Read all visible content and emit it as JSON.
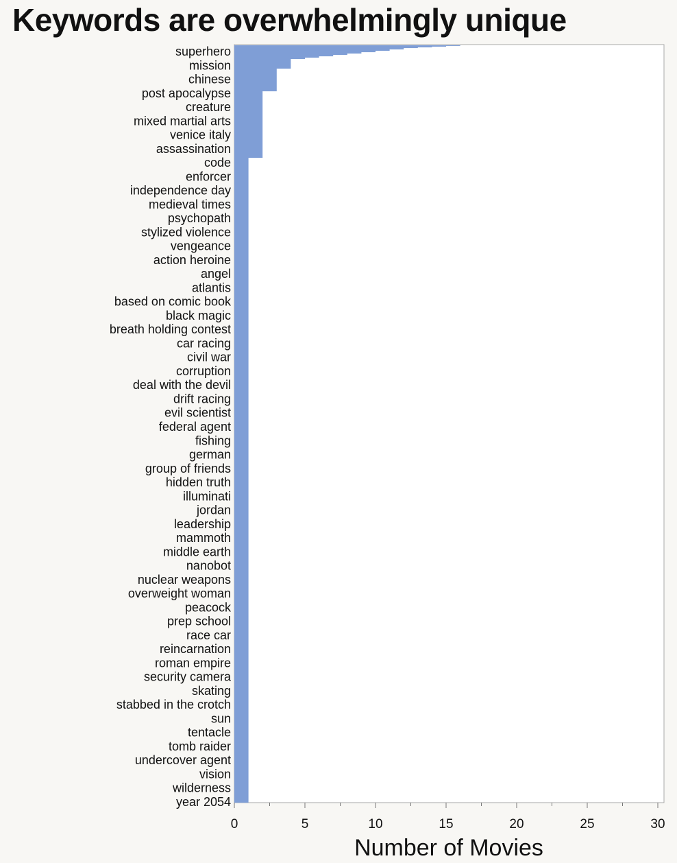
{
  "chart_data": {
    "type": "bar",
    "orientation": "horizontal",
    "title": "Keywords are overwhelmingly unique",
    "xlabel": "Number of Movies",
    "ylabel": "",
    "xlim": [
      0,
      30
    ],
    "xticks": [
      0,
      5,
      10,
      15,
      20,
      25,
      30
    ],
    "bar_color": "#7f9ed6",
    "plot_background": "#ffffff",
    "page_background": "#f8f7f4",
    "labeled_keywords": [
      {
        "label": "superhero",
        "value": 16
      },
      {
        "label": "mission",
        "value": 8
      },
      {
        "label": "chinese",
        "value": 4
      },
      {
        "label": "post apocalypse",
        "value": 4
      },
      {
        "label": "creature",
        "value": 3
      },
      {
        "label": "mixed martial arts",
        "value": 3
      },
      {
        "label": "venice italy",
        "value": 3
      },
      {
        "label": "assassination",
        "value": 2
      },
      {
        "label": "code",
        "value": 2
      },
      {
        "label": "enforcer",
        "value": 2
      },
      {
        "label": "independence day",
        "value": 2
      },
      {
        "label": "medieval times",
        "value": 2
      },
      {
        "label": "psychopath",
        "value": 2
      },
      {
        "label": "stylized violence",
        "value": 2
      },
      {
        "label": "vengeance",
        "value": 2
      },
      {
        "label": "action heroine",
        "value": 1
      },
      {
        "label": "angel",
        "value": 1
      },
      {
        "label": "atlantis",
        "value": 1
      },
      {
        "label": "based on comic book",
        "value": 1
      },
      {
        "label": "black magic",
        "value": 1
      },
      {
        "label": "breath holding contest",
        "value": 1
      },
      {
        "label": "car racing",
        "value": 1
      },
      {
        "label": "civil war",
        "value": 1
      },
      {
        "label": "corruption",
        "value": 1
      },
      {
        "label": "deal with the devil",
        "value": 1
      },
      {
        "label": "drift racing",
        "value": 1
      },
      {
        "label": "evil scientist",
        "value": 1
      },
      {
        "label": "federal agent",
        "value": 1
      },
      {
        "label": "fishing",
        "value": 1
      },
      {
        "label": "german",
        "value": 1
      },
      {
        "label": "group of friends",
        "value": 1
      },
      {
        "label": "hidden truth",
        "value": 1
      },
      {
        "label": "illuminati",
        "value": 1
      },
      {
        "label": "jordan",
        "value": 1
      },
      {
        "label": "leadership",
        "value": 1
      },
      {
        "label": "mammoth",
        "value": 1
      },
      {
        "label": "middle earth",
        "value": 1
      },
      {
        "label": "nanobot",
        "value": 1
      },
      {
        "label": "nuclear weapons",
        "value": 1
      },
      {
        "label": "overweight woman",
        "value": 1
      },
      {
        "label": "peacock",
        "value": 1
      },
      {
        "label": "prep school",
        "value": 1
      },
      {
        "label": "race car",
        "value": 1
      },
      {
        "label": "reincarnation",
        "value": 1
      },
      {
        "label": "roman empire",
        "value": 1
      },
      {
        "label": "security camera",
        "value": 1
      },
      {
        "label": "skating",
        "value": 1
      },
      {
        "label": "stabbed in the crotch",
        "value": 1
      },
      {
        "label": "sun",
        "value": 1
      },
      {
        "label": "tentacle",
        "value": 1
      },
      {
        "label": "tomb raider",
        "value": 1
      },
      {
        "label": "undercover agent",
        "value": 1
      },
      {
        "label": "vision",
        "value": 1
      },
      {
        "label": "wilderness",
        "value": 1
      },
      {
        "label": "year 2054",
        "value": 1
      }
    ],
    "sorted_values_by_rank": [
      16,
      15,
      14,
      13,
      12,
      12,
      11,
      11,
      10,
      10,
      9,
      9,
      8,
      8,
      7,
      7,
      6,
      6,
      5,
      5,
      4,
      4,
      4,
      4,
      4,
      4,
      4,
      4,
      4,
      4,
      4,
      4,
      4,
      4,
      3,
      3,
      3,
      3,
      3,
      3,
      3,
      3,
      3,
      3,
      3,
      3,
      3,
      3,
      3,
      3,
      3,
      3,
      3,
      3,
      3,
      3,
      3,
      3,
      3,
      3,
      3,
      3,
      3,
      3,
      3,
      3,
      3,
      2,
      2,
      2,
      2,
      2,
      2,
      2,
      2,
      2,
      2,
      2,
      2,
      2,
      2,
      2,
      2,
      2,
      2,
      2,
      2,
      2,
      2,
      2,
      2,
      2,
      2,
      2,
      2,
      2,
      2,
      2,
      2,
      2,
      2,
      2,
      2,
      2,
      2,
      2,
      2,
      2,
      2,
      2,
      2,
      2,
      2,
      2,
      2,
      2,
      2,
      2,
      2,
      2,
      2,
      2,
      2,
      2,
      2,
      2,
      2,
      2,
      2,
      2,
      2,
      2,
      2,
      2,
      2,
      2,
      2,
      2,
      2,
      2,
      2,
      2,
      2,
      2,
      2,
      2,
      2,
      2,
      2,
      2,
      2,
      2,
      2,
      2,
      2,
      2,
      2,
      2,
      2,
      2,
      2,
      2,
      2,
      2,
      1,
      1,
      1,
      1,
      1,
      1,
      1,
      1,
      1,
      1,
      1,
      1,
      1,
      1,
      1,
      1,
      1,
      1,
      1,
      1,
      1,
      1,
      1,
      1,
      1,
      1,
      1,
      1,
      1,
      1,
      1,
      1,
      1,
      1,
      1,
      1,
      1,
      1,
      1,
      1,
      1,
      1,
      1,
      1,
      1,
      1,
      1,
      1,
      1,
      1,
      1,
      1,
      1,
      1,
      1,
      1,
      1,
      1,
      1,
      1,
      1,
      1,
      1,
      1,
      1,
      1,
      1,
      1,
      1,
      1,
      1,
      1,
      1,
      1,
      1,
      1,
      1,
      1,
      1,
      1,
      1,
      1,
      1,
      1,
      1,
      1,
      1,
      1,
      1,
      1,
      1,
      1,
      1,
      1,
      1,
      1,
      1,
      1,
      1,
      1,
      1,
      1,
      1,
      1,
      1,
      1,
      1,
      1,
      1,
      1,
      1,
      1,
      1,
      1,
      1,
      1,
      1,
      1,
      1,
      1,
      1,
      1,
      1,
      1,
      1,
      1,
      1,
      1,
      1,
      1,
      1,
      1,
      1,
      1,
      1,
      1,
      1,
      1,
      1,
      1,
      1,
      1,
      1,
      1,
      1,
      1,
      1,
      1,
      1,
      1,
      1,
      1,
      1,
      1,
      1,
      1,
      1,
      1,
      1,
      1,
      1,
      1,
      1,
      1,
      1,
      1,
      1,
      1,
      1,
      1,
      1,
      1,
      1,
      1,
      1,
      1,
      1,
      1,
      1,
      1,
      1,
      1,
      1,
      1,
      1,
      1,
      1,
      1,
      1,
      1,
      1,
      1,
      1,
      1,
      1,
      1,
      1,
      1,
      1,
      1,
      1,
      1,
      1,
      1,
      1,
      1,
      1,
      1,
      1,
      1,
      1,
      1,
      1,
      1,
      1,
      1,
      1,
      1,
      1,
      1,
      1,
      1,
      1,
      1,
      1,
      1,
      1,
      1,
      1,
      1,
      1,
      1,
      1,
      1,
      1,
      1,
      1,
      1,
      1,
      1,
      1,
      1,
      1,
      1,
      1,
      1,
      1,
      1,
      1,
      1,
      1,
      1,
      1,
      1,
      1,
      1,
      1,
      1,
      1,
      1,
      1,
      1,
      1,
      1,
      1,
      1,
      1,
      1,
      1,
      1,
      1,
      1,
      1,
      1,
      1,
      1,
      1,
      1,
      1,
      1,
      1,
      1,
      1,
      1,
      1,
      1,
      1,
      1,
      1,
      1,
      1,
      1,
      1,
      1,
      1,
      1,
      1,
      1,
      1,
      1,
      1,
      1,
      1,
      1,
      1,
      1,
      1,
      1,
      1,
      1,
      1,
      1,
      1,
      1,
      1,
      1,
      1,
      1,
      1,
      1,
      1,
      1,
      1,
      1,
      1,
      1,
      1,
      1,
      1,
      1,
      1,
      1,
      1,
      1,
      1,
      1,
      1,
      1,
      1,
      1,
      1,
      1,
      1,
      1,
      1,
      1,
      1,
      1,
      1,
      1,
      1,
      1,
      1,
      1,
      1,
      1,
      1,
      1,
      1,
      1,
      1,
      1,
      1,
      1,
      1,
      1,
      1,
      1,
      1,
      1,
      1,
      1,
      1,
      1,
      1,
      1,
      1,
      1,
      1,
      1,
      1,
      1,
      1,
      1,
      1,
      1,
      1,
      1,
      1,
      1,
      1,
      1,
      1,
      1,
      1,
      1,
      1,
      1,
      1,
      1,
      1,
      1,
      1,
      1,
      1,
      1,
      1,
      1,
      1,
      1,
      1,
      1,
      1,
      1,
      1,
      1,
      1,
      1,
      1,
      1,
      1,
      1,
      1,
      1,
      1,
      1,
      1,
      1,
      1,
      1,
      1,
      1,
      1,
      1,
      1,
      1,
      1,
      1,
      1,
      1,
      1,
      1,
      1,
      1,
      1,
      1,
      1,
      1,
      1,
      1,
      1,
      1,
      1,
      1,
      1,
      1,
      1,
      1,
      1,
      1,
      1,
      1,
      1,
      1,
      1,
      1,
      1,
      1,
      1,
      1,
      1,
      1,
      1,
      1,
      1,
      1,
      1,
      1,
      1,
      1,
      1,
      1,
      1,
      1,
      1,
      1,
      1,
      1,
      1,
      1,
      1,
      1,
      1,
      1,
      1,
      1,
      1,
      1,
      1,
      1,
      1,
      1,
      1,
      1,
      1,
      1,
      1,
      1,
      1,
      1,
      1,
      1,
      1,
      1,
      1,
      1,
      1,
      1,
      1,
      1,
      1,
      1,
      1,
      1,
      1,
      1,
      1,
      1,
      1,
      1,
      1,
      1,
      1,
      1,
      1,
      1,
      1,
      1,
      1,
      1,
      1,
      1,
      1,
      1,
      1,
      1,
      1,
      1,
      1,
      1,
      1,
      1,
      1,
      1,
      1,
      1,
      1,
      1,
      1,
      1,
      1,
      1,
      1,
      1,
      1,
      1,
      1,
      1,
      1,
      1,
      1,
      1,
      1,
      1,
      1,
      1,
      1,
      1,
      1,
      1,
      1,
      1,
      1,
      1,
      1,
      1,
      1,
      1,
      1,
      1,
      1,
      1,
      1,
      1,
      1,
      1,
      1,
      1,
      1,
      1,
      1,
      1,
      1,
      1,
      1,
      1,
      1,
      1,
      1,
      1,
      1,
      1,
      1,
      1,
      1,
      1,
      1,
      1,
      1,
      1,
      1,
      1,
      1,
      1,
      1,
      1,
      1,
      1,
      1,
      1,
      1,
      1,
      1,
      1,
      1,
      1,
      1,
      1,
      1,
      1,
      1,
      1,
      1,
      1,
      1,
      1,
      1,
      1,
      1,
      1,
      1,
      1,
      1,
      1,
      1,
      1,
      1,
      1,
      1,
      1,
      1,
      1,
      1,
      1,
      1,
      1,
      1,
      1,
      1,
      1,
      1,
      1,
      1,
      1,
      1,
      1,
      1,
      1,
      1,
      1,
      1,
      1,
      1,
      1,
      1,
      1,
      1,
      1,
      1,
      1,
      1,
      1,
      1,
      1,
      1,
      1,
      1,
      1,
      1,
      1,
      1,
      1,
      1,
      1,
      1,
      1,
      1,
      1,
      1,
      1,
      1,
      1,
      1,
      1,
      1,
      1,
      1,
      1,
      1,
      1,
      1,
      1,
      1,
      1,
      1,
      1,
      1,
      1,
      1,
      1,
      1,
      1,
      1,
      1,
      1,
      1,
      1,
      1,
      1,
      1,
      1,
      1,
      1,
      1,
      1,
      1,
      1,
      1,
      1,
      1,
      1,
      1,
      1,
      1,
      1,
      1,
      1,
      1,
      1,
      1,
      1,
      1,
      1,
      1,
      1,
      1,
      1,
      1,
      1,
      1,
      1,
      1,
      1,
      1,
      1,
      1,
      1,
      1,
      1,
      1,
      1,
      1,
      1,
      1,
      1,
      1,
      1,
      1,
      1,
      1,
      1,
      1,
      1,
      1,
      1,
      1,
      1,
      1,
      1,
      1,
      1,
      1,
      1,
      1,
      1,
      1,
      1,
      1,
      1,
      1,
      1,
      1,
      1,
      1,
      1,
      1,
      1,
      1,
      1,
      1,
      1,
      1,
      1,
      1,
      1,
      1,
      1,
      1,
      1,
      1,
      1,
      1,
      1,
      1,
      1,
      1,
      1,
      1,
      1,
      1,
      1,
      1,
      1,
      1,
      1,
      1,
      1,
      1,
      1,
      1,
      1,
      1,
      1,
      1,
      1,
      1,
      1,
      1,
      1,
      1,
      1,
      1,
      1,
      1,
      1,
      1,
      1,
      1,
      1,
      1,
      1,
      1,
      1,
      1,
      1,
      1,
      1,
      1,
      1,
      1,
      1,
      1,
      1,
      1,
      1,
      1,
      1,
      1,
      1,
      1,
      1,
      1,
      1,
      1,
      1,
      1,
      1,
      1,
      1,
      1,
      1,
      1,
      1,
      1,
      1,
      1,
      1,
      1,
      1,
      1,
      1,
      1,
      1,
      1,
      1,
      1,
      1,
      1,
      1,
      1,
      1,
      1,
      1,
      1,
      1,
      1,
      1,
      1,
      1,
      1,
      1,
      1,
      1,
      1,
      1,
      1,
      1,
      1,
      1,
      1
    ]
  }
}
